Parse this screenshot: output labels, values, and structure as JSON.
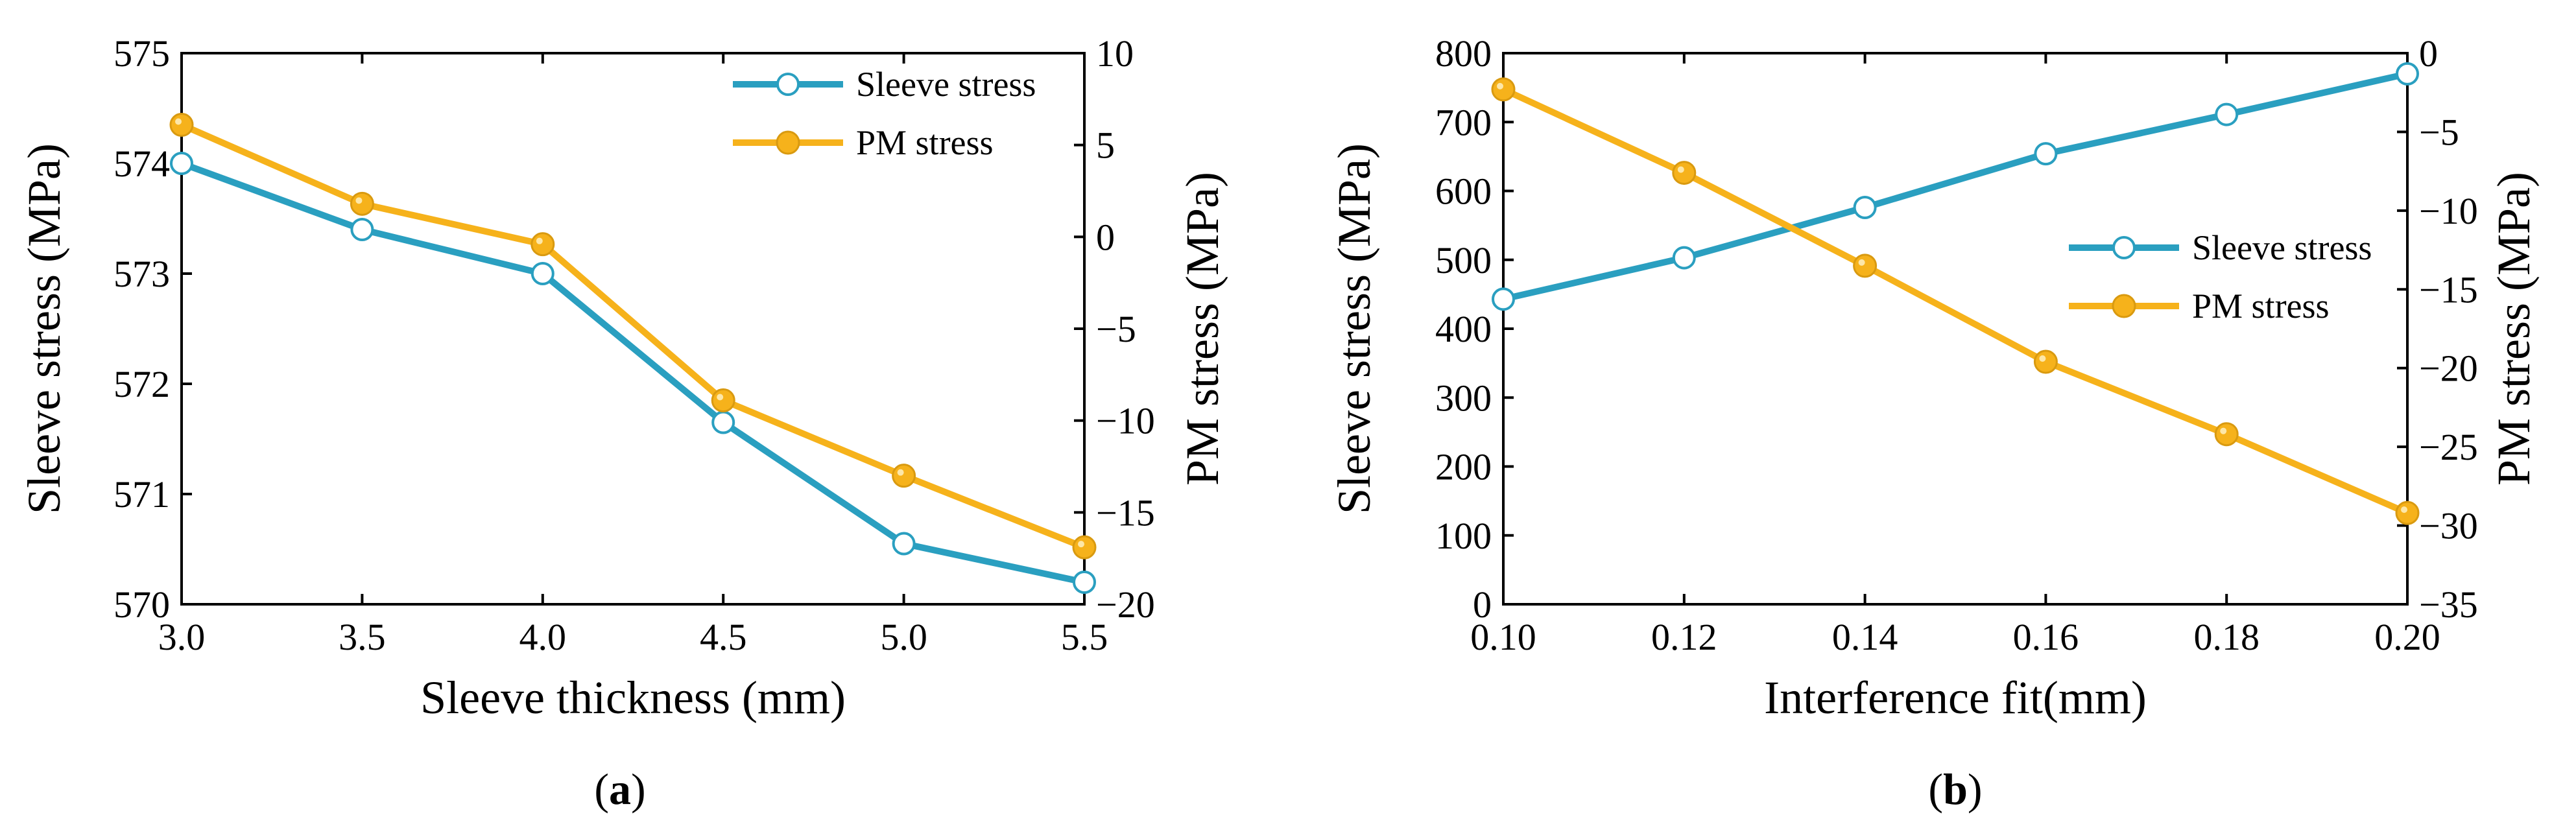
{
  "chart_data": [
    {
      "type": "line",
      "panel_label": "a",
      "xlabel": "Sleeve thickness (mm)",
      "ylabel_left": "Sleeve stress (MPa)",
      "ylabel_right": "PM stress (MPa)",
      "xlim": [
        3.0,
        5.5
      ],
      "ylim_left": [
        570,
        575
      ],
      "ylim_right": [
        -20,
        10
      ],
      "x_ticks": [
        3.0,
        3.5,
        4.0,
        4.5,
        5.0,
        5.5
      ],
      "x_tick_labels": [
        "3.0",
        "3.5",
        "4.0",
        "4.5",
        "5.0",
        "5.5"
      ],
      "y_left_ticks": [
        570,
        571,
        572,
        573,
        574,
        575
      ],
      "y_left_tick_labels": [
        "570",
        "571",
        "572",
        "573",
        "574",
        "575"
      ],
      "y_right_ticks": [
        -20,
        -15,
        -10,
        -5,
        0,
        5,
        10
      ],
      "y_right_tick_labels": [
        "−20",
        "−15",
        "−10",
        "−5",
        "0",
        "5",
        "10"
      ],
      "legend_position": "top-right",
      "x": [
        3.0,
        3.5,
        4.0,
        4.5,
        5.0,
        5.5
      ],
      "series": [
        {
          "name": "Sleeve stress",
          "axis": "left",
          "color": "#2a9fc0",
          "marker": "open-circle",
          "values": [
            574.0,
            573.4,
            573.0,
            571.65,
            570.55,
            570.2
          ]
        },
        {
          "name": "PM stress",
          "axis": "right",
          "color": "#f6b21b",
          "marker": "filled-circle",
          "values": [
            6.1,
            1.8,
            -0.4,
            -8.9,
            -13.0,
            -16.9
          ]
        }
      ]
    },
    {
      "type": "line",
      "panel_label": "b",
      "xlabel": "Interference fit(mm)",
      "ylabel_left": "Sleeve stress (MPa)",
      "ylabel_right": "PM stress (MPa)",
      "xlim": [
        0.1,
        0.2
      ],
      "ylim_left": [
        0,
        800
      ],
      "ylim_right": [
        -35,
        0
      ],
      "x_ticks": [
        0.1,
        0.12,
        0.14,
        0.16,
        0.18,
        0.2
      ],
      "x_tick_labels": [
        "0.10",
        "0.12",
        "0.14",
        "0.16",
        "0.18",
        "0.20"
      ],
      "y_left_ticks": [
        0,
        100,
        200,
        300,
        400,
        500,
        600,
        700,
        800
      ],
      "y_left_tick_labels": [
        "0",
        "100",
        "200",
        "300",
        "400",
        "500",
        "600",
        "700",
        "800"
      ],
      "y_right_ticks": [
        -35,
        -30,
        -25,
        -20,
        -15,
        -10,
        -5,
        0
      ],
      "y_right_tick_labels": [
        "−35",
        "−30",
        "−25",
        "−20",
        "−15",
        "−10",
        "−5",
        "0"
      ],
      "legend_position": "center-right",
      "x": [
        0.1,
        0.12,
        0.14,
        0.16,
        0.18,
        0.2
      ],
      "series": [
        {
          "name": "Sleeve stress",
          "axis": "left",
          "color": "#2a9fc0",
          "marker": "open-circle",
          "values": [
            443,
            503,
            576,
            654,
            711,
            770
          ]
        },
        {
          "name": "PM stress",
          "axis": "right",
          "color": "#f6b21b",
          "marker": "filled-circle",
          "values": [
            -2.3,
            -7.6,
            -13.5,
            -19.6,
            -24.2,
            -29.2
          ]
        }
      ]
    }
  ]
}
